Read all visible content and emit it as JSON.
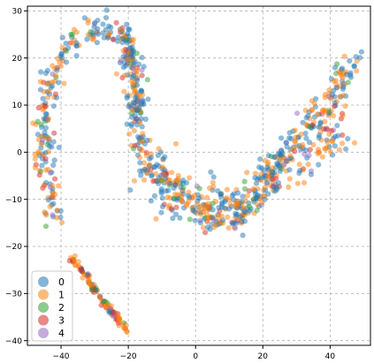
{
  "chart_data": {
    "type": "scatter",
    "title": "",
    "xlabel": "",
    "ylabel": "",
    "xlim": [
      -50,
      52
    ],
    "ylim": [
      -41,
      31
    ],
    "xticks": [
      -40,
      -20,
      0,
      20,
      40
    ],
    "yticks": [
      -40,
      -30,
      -20,
      -10,
      0,
      10,
      20,
      30
    ],
    "xtick_labels": [
      "−40",
      "−20",
      "0",
      "20",
      "40"
    ],
    "ytick_labels": [
      "−40",
      "−30",
      "−20",
      "−10",
      "0",
      "10",
      "20",
      "30"
    ],
    "grid": true,
    "grid_style": "dashed",
    "legend_position": "lower-left",
    "point_alpha": 0.5,
    "series": [
      {
        "name": "0",
        "color": "#1f77b4"
      },
      {
        "name": "1",
        "color": "#ff7f0e"
      },
      {
        "name": "2",
        "color": "#2ca02c"
      },
      {
        "name": "3",
        "color": "#d62728"
      },
      {
        "name": "4",
        "color": "#9467bd"
      }
    ],
    "clusters": [
      {
        "description_ref": "upper arc",
        "path": [
          [
            -41.5,
            -15
          ],
          [
            -43,
            -10
          ],
          [
            -44.5,
            -4
          ],
          [
            -45.5,
            2
          ],
          [
            -45,
            8
          ],
          [
            -43.5,
            14
          ],
          [
            -41,
            18.5
          ],
          [
            -38,
            22
          ],
          [
            -34,
            25
          ],
          [
            -30,
            26.5
          ],
          [
            -26,
            26
          ],
          [
            -22,
            25
          ],
          [
            -19.5,
            21
          ],
          [
            -18.5,
            16
          ],
          [
            -18,
            11
          ],
          [
            -17.5,
            6
          ],
          [
            -16,
            2
          ],
          [
            -13,
            -2
          ],
          [
            -9,
            -5.5
          ],
          [
            -5,
            -8.5
          ],
          [
            0,
            -12
          ],
          [
            5,
            -14
          ],
          [
            10,
            -14
          ],
          [
            15,
            -12
          ],
          [
            19,
            -8
          ],
          [
            23,
            -4
          ],
          [
            27,
            0
          ],
          [
            31,
            4
          ],
          [
            35,
            6
          ],
          [
            38,
            9
          ],
          [
            41,
            13
          ],
          [
            44,
            16
          ],
          [
            47,
            19
          ],
          [
            48.5,
            20.5
          ]
        ],
        "count": 620,
        "spread": 1.6,
        "mix": [
          0.5,
          0.36,
          0.05,
          0.06,
          0.03
        ]
      },
      {
        "description_ref": "lower band",
        "path": [
          [
            -36.5,
            -23
          ],
          [
            -33,
            -26
          ],
          [
            -29.5,
            -30
          ],
          [
            -26,
            -33
          ],
          [
            -23,
            -35.5
          ],
          [
            -20.5,
            -37.5
          ]
        ],
        "count": 110,
        "spread": 0.45,
        "mix": [
          0.1,
          0.45,
          0.15,
          0.25,
          0.05
        ]
      },
      {
        "description_ref": "valley thickening",
        "path": [
          [
            -15,
            -3
          ],
          [
            -8,
            -8
          ],
          [
            0,
            -10
          ],
          [
            8,
            -11
          ],
          [
            15,
            -9
          ],
          [
            22,
            -5
          ],
          [
            30,
            -2
          ],
          [
            38,
            2
          ],
          [
            43,
            6
          ]
        ],
        "count": 260,
        "spread": 2.6,
        "mix": [
          0.45,
          0.4,
          0.06,
          0.06,
          0.03
        ]
      },
      {
        "description_ref": "left arm thickening",
        "path": [
          [
            -22,
            26
          ],
          [
            -20,
            22
          ],
          [
            -19,
            17
          ],
          [
            -18,
            12
          ],
          [
            -17.5,
            7
          ]
        ],
        "count": 90,
        "spread": 1.4,
        "mix": [
          0.7,
          0.22,
          0.03,
          0.03,
          0.02
        ]
      }
    ]
  },
  "legend": {
    "items": [
      {
        "label": "0",
        "color": "#1f77b4"
      },
      {
        "label": "1",
        "color": "#ff7f0e"
      },
      {
        "label": "2",
        "color": "#2ca02c"
      },
      {
        "label": "3",
        "color": "#d62728"
      },
      {
        "label": "4",
        "color": "#9467bd"
      }
    ]
  }
}
